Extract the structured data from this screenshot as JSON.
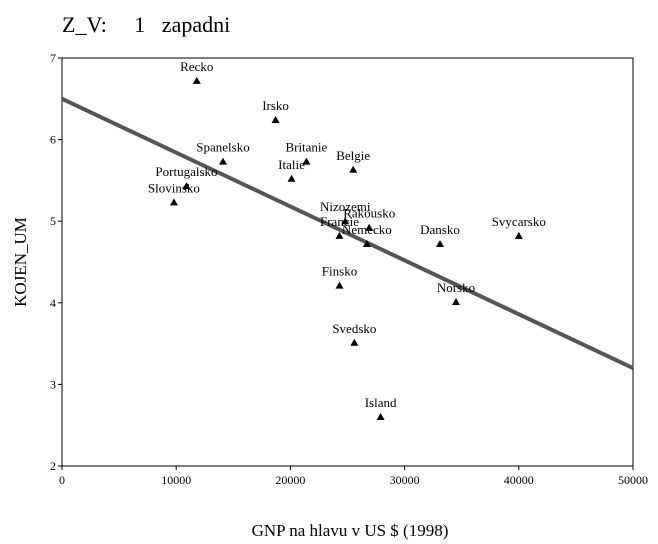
{
  "chart_data": {
    "type": "scatter",
    "title": "Z_V:     1   zapadni",
    "xlabel": "GNP na hlavu v US $ (1998)",
    "ylabel": "KOJEN_UM",
    "xlim": [
      0,
      50000
    ],
    "ylim": [
      2,
      7
    ],
    "xticks": [
      0,
      10000,
      20000,
      30000,
      40000,
      50000
    ],
    "yticks": [
      2,
      3,
      4,
      5,
      6,
      7
    ],
    "color": "#000000",
    "labels": [
      "Recko",
      "Irsko",
      "Spanelsko",
      "Britanie",
      "Belgie",
      "Italie",
      "Portugalsko",
      "Slovinsko",
      "Nizozemi",
      "Rakousko",
      "Francie",
      "Nemecko",
      "Dansko",
      "Svycarsko",
      "Finsko",
      "Norsko",
      "Svedsko",
      "Island"
    ],
    "x": [
      11800,
      18700,
      14100,
      21400,
      25500,
      20100,
      10900,
      9800,
      24800,
      26900,
      24300,
      26700,
      33100,
      40000,
      24300,
      34500,
      25600,
      27900
    ],
    "values": [
      6.72,
      6.24,
      5.73,
      5.73,
      5.63,
      5.52,
      5.43,
      5.23,
      5.0,
      4.92,
      4.82,
      4.72,
      4.72,
      4.82,
      4.21,
      4.01,
      3.51,
      2.6
    ],
    "fit": {
      "x": [
        0,
        50000
      ],
      "values": [
        6.5,
        3.2
      ],
      "color": "#555555"
    }
  }
}
